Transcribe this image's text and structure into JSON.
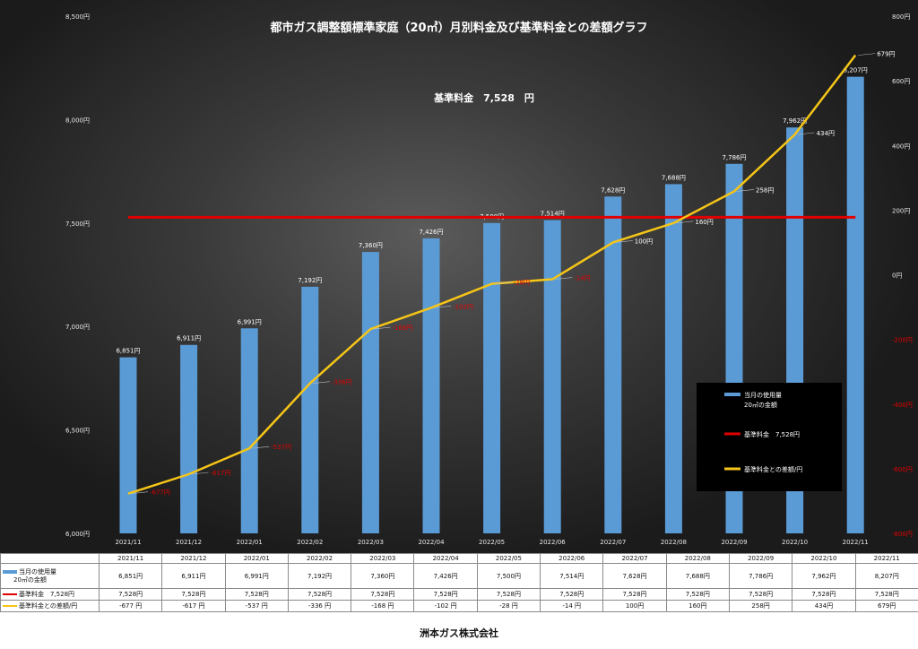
{
  "chart_data": {
    "type": "bar+line",
    "title": "都市ガス調整額標準家庭（20㎥）月別料金及び基準料金との差額グラフ",
    "annotation": "基準料金　7,528　円",
    "categories": [
      "2021/11",
      "2021/12",
      "2022/01",
      "2022/02",
      "2022/03",
      "2022/04",
      "2022/05",
      "2022/06",
      "2022/07",
      "2022/08",
      "2022/09",
      "2022/10",
      "2022/11"
    ],
    "series": [
      {
        "name": "当月の使用量20㎥の金額",
        "display_name": "当月の使用量\n20㎥の金額",
        "type": "bar",
        "axis": "left",
        "color": "#5b9bd5",
        "values": [
          6851,
          6911,
          6991,
          7192,
          7360,
          7426,
          7500,
          7514,
          7628,
          7688,
          7786,
          7962,
          8207
        ],
        "labels": [
          "6,851円",
          "6,911円",
          "6,991円",
          "7,192円",
          "7,360円",
          "7,426円",
          "7,500円",
          "7,514円",
          "7,628円",
          "7,688円",
          "7,786円",
          "7,962円",
          "8,207円"
        ]
      },
      {
        "name": "基準料金　7,528円",
        "type": "line",
        "axis": "left",
        "color": "#e00000",
        "values": [
          7528,
          7528,
          7528,
          7528,
          7528,
          7528,
          7528,
          7528,
          7528,
          7528,
          7528,
          7528,
          7528
        ]
      },
      {
        "name": "基準料金との差額/円",
        "type": "line",
        "axis": "right",
        "color": "#f5c518",
        "values": [
          -677,
          -617,
          -537,
          -336,
          -168,
          -102,
          -28,
          -14,
          100,
          160,
          258,
          434,
          679
        ],
        "labels": [
          "-677円",
          "-617円",
          "-537円",
          "-336円",
          "-168円",
          "-102円",
          "-28円",
          "-14円",
          "100円",
          "160円",
          "258円",
          "434円",
          "679円"
        ]
      }
    ],
    "y_left": {
      "range": [
        6000,
        8500
      ],
      "ticks": [
        "6,000円",
        "6,500円",
        "7,000円",
        "7,500円",
        "8,000円",
        "8,500円"
      ],
      "tick_values": [
        6000,
        6500,
        7000,
        7500,
        8000,
        8500
      ]
    },
    "y_right": {
      "range": [
        -800,
        800
      ],
      "ticks": [
        "-800円",
        "-600円",
        "-400円",
        "-200円",
        "0円",
        "200円",
        "400円",
        "600円",
        "800円"
      ],
      "tick_values": [
        -800,
        -600,
        -400,
        -200,
        0,
        200,
        400,
        600,
        800
      ]
    },
    "legend_position": "right",
    "colors": {
      "bar": "#5b9bd5",
      "base": "#e00000",
      "diff": "#f5c518",
      "neg_label": "#e00000"
    }
  },
  "table": {
    "headers": [
      "2021/11",
      "2021/12",
      "2022/01",
      "2022/02",
      "2022/03",
      "2022/04",
      "2022/05",
      "2022/06",
      "2022/07",
      "2022/08",
      "2022/09",
      "2022/10",
      "2022/11"
    ],
    "rows": [
      {
        "label": "当月の使用量\n20㎥の金額",
        "swatch": "#5b9bd5",
        "cells": [
          "6,851円",
          "6,911円",
          "6,991円",
          "7,192円",
          "7,360円",
          "7,426円",
          "7,500円",
          "7,514円",
          "7,628円",
          "7,688円",
          "7,786円",
          "7,962円",
          "8,207円"
        ]
      },
      {
        "label": "基準料金　7,528円",
        "swatch": "#e00000",
        "cells": [
          "7,528円",
          "7,528円",
          "7,528円",
          "7,528円",
          "7,528円",
          "7,528円",
          "7,528円",
          "7,528円",
          "7,528円",
          "7,528円",
          "7,528円",
          "7,528円",
          "7,528円"
        ]
      },
      {
        "label": "基準料金との差額/円",
        "swatch": "#f5c518",
        "cells": [
          "-677 円",
          "-617 円",
          "-537 円",
          "-336 円",
          "-168 円",
          "-102 円",
          "-28 円",
          "-14 円",
          "100円",
          "160円",
          "258円",
          "434円",
          "679円"
        ]
      }
    ]
  },
  "footer": "洲本ガス株式会社"
}
